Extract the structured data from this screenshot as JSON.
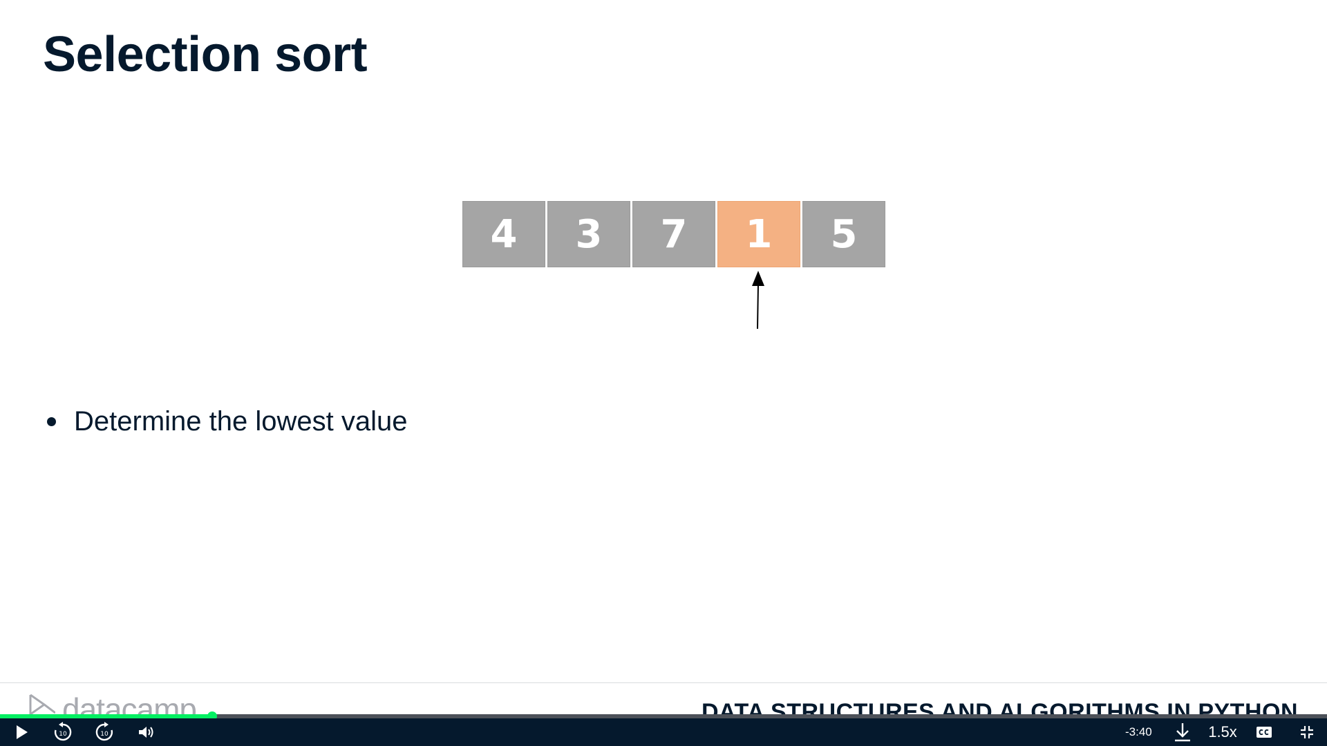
{
  "slide": {
    "title": "Selection sort",
    "array": [
      {
        "value": "4",
        "highlighted": false
      },
      {
        "value": "3",
        "highlighted": false
      },
      {
        "value": "7",
        "highlighted": false
      },
      {
        "value": "1",
        "highlighted": true
      },
      {
        "value": "5",
        "highlighted": false
      }
    ],
    "bullets": [
      "Determine the lowest value"
    ],
    "colors": {
      "cell": "#a5a5a5",
      "highlight": "#f4b183",
      "text": "#05192d"
    }
  },
  "footer": {
    "logo_text": "datacamp",
    "course_name": "DATA STRUCTURES AND ALGORITHMS IN PYTHON"
  },
  "player": {
    "progress_fraction": 0.16,
    "time_remaining": "-3:40",
    "speed": "1.5x",
    "rewind_seconds": "10",
    "forward_seconds": "10",
    "accent": "#03ef62",
    "bar_color": "#05192d"
  }
}
